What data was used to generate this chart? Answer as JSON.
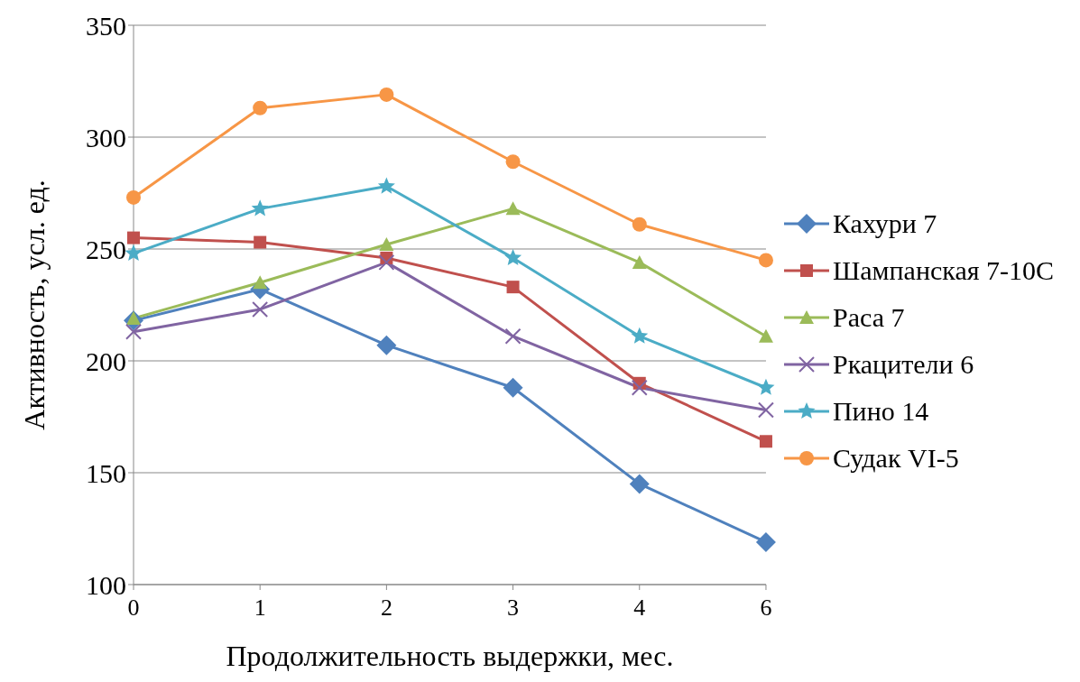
{
  "chart_data": {
    "type": "line",
    "xlabel": "Продолжительность  выдержки, мес.",
    "ylabel": "Активность,  усл. ед.",
    "categories": [
      "0",
      "1",
      "2",
      "3",
      "4",
      "6"
    ],
    "series": [
      {
        "name": "Кахури 7",
        "color": "#4f81bd",
        "marker": "diamond",
        "values": [
          218,
          232,
          207,
          188,
          145,
          119
        ]
      },
      {
        "name": "Шампанская 7-10С",
        "color": "#c0504d",
        "marker": "square",
        "values": [
          255,
          253,
          246,
          233,
          190,
          164
        ]
      },
      {
        "name": "Раса 7",
        "color": "#9bbb59",
        "marker": "triangle",
        "values": [
          219,
          235,
          252,
          268,
          244,
          211
        ]
      },
      {
        "name": "Ркацители 6",
        "color": "#8064a2",
        "marker": "cross",
        "values": [
          213,
          223,
          244,
          211,
          188,
          178
        ]
      },
      {
        "name": "Пино 14",
        "color": "#4bacc6",
        "marker": "star",
        "values": [
          248,
          268,
          278,
          246,
          211,
          188
        ]
      },
      {
        "name": "Судак VI-5",
        "color": "#f79646",
        "marker": "circle",
        "values": [
          273,
          313,
          319,
          289,
          261,
          245
        ]
      }
    ],
    "ylim": [
      100,
      350
    ],
    "yticks": [
      100,
      150,
      200,
      250,
      300,
      350
    ],
    "grid": "y",
    "legend": "right",
    "line_style": "solid"
  }
}
